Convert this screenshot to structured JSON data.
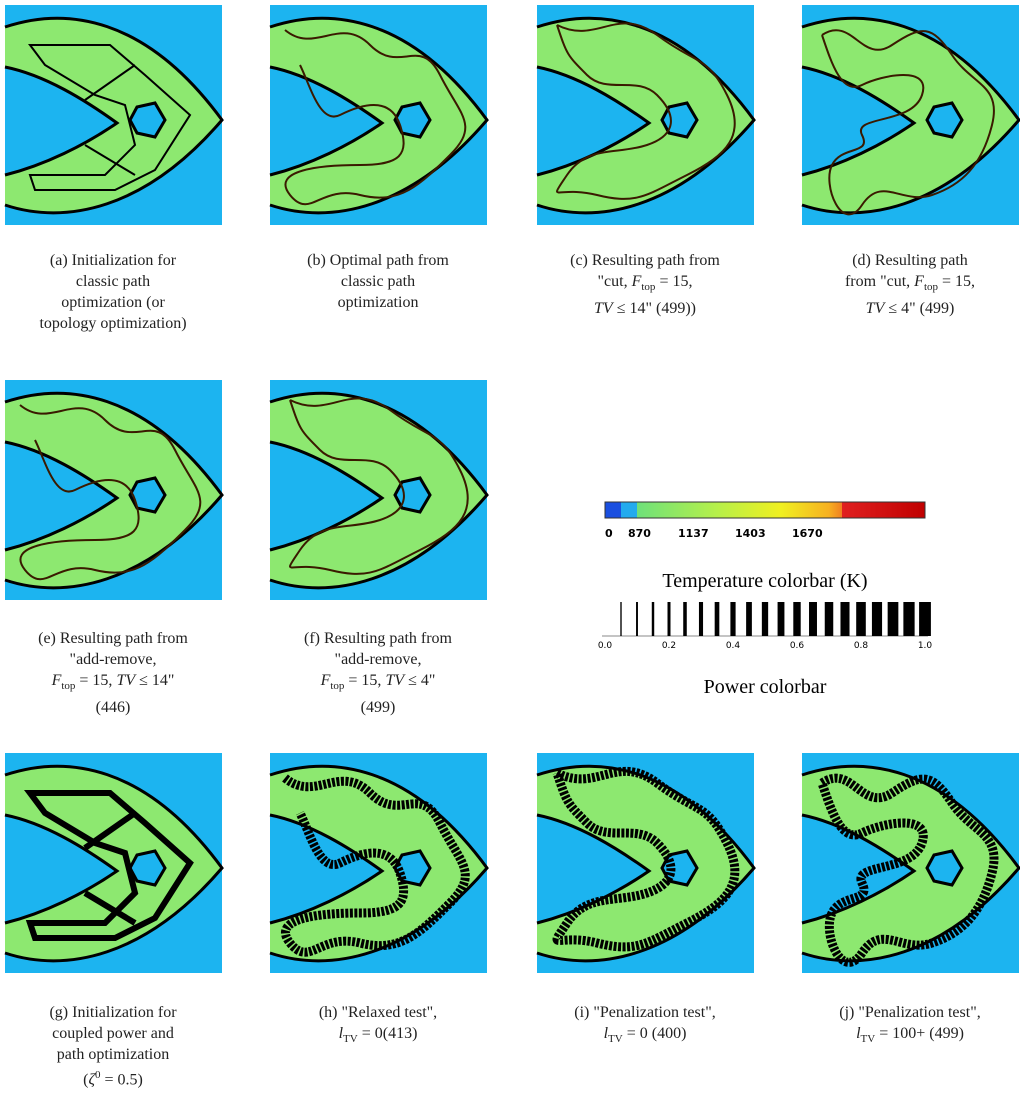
{
  "panels": [
    {
      "caption": [
        "(a) Initialization for",
        "classic path",
        "optimization (or",
        "topology optimization)"
      ]
    },
    {
      "caption": [
        "(b) Optimal path from",
        "classic path",
        "optimization"
      ]
    },
    {
      "caption": [
        "(c) Resulting path from",
        [
          "\"cut, ",
          {
            "i": "F",
            "sub": "top"
          },
          " = 15,"
        ],
        [
          {
            "i": "TV"
          },
          " ≤ 14\" (499))"
        ]
      ]
    },
    {
      "caption": [
        "(d) Resulting path",
        [
          "from \"cut, ",
          {
            "i": "F",
            "sub": "top"
          },
          " = 15,"
        ],
        [
          {
            "i": "TV"
          },
          " ≤ 4\" (499)"
        ]
      ]
    },
    {
      "caption": [
        "(e) Resulting path from",
        "\"add-remove,",
        [
          {
            "i": "F",
            "sub": "top"
          },
          " = 15, ",
          {
            "i": "TV"
          },
          " ≤ 14\""
        ],
        "(446)"
      ]
    },
    {
      "caption": [
        "(f) Resulting path from",
        "\"add-remove,",
        [
          {
            "i": "F",
            "sub": "top"
          },
          " = 15, ",
          {
            "i": "TV"
          },
          " ≤ 4\""
        ],
        "(499)"
      ]
    },
    {
      "caption": [
        "(g) Initialization for",
        "coupled power and",
        "path optimization",
        [
          "(",
          {
            "i": "ζ",
            "sup": "0"
          },
          " = 0.5)"
        ]
      ]
    },
    {
      "caption": [
        "(h) \"Relaxed test\",",
        [
          {
            "i": "l",
            "sub": "TV"
          },
          " = 0(413)"
        ]
      ]
    },
    {
      "caption": [
        "(i) \"Penalization test\",",
        [
          {
            "i": "l",
            "sub": "TV"
          },
          " = 0 (400)"
        ]
      ]
    },
    {
      "caption": [
        "(j) \"Penalization test\",",
        [
          {
            "i": "l",
            "sub": "TV"
          },
          " = 100+ (499)"
        ]
      ]
    }
  ],
  "temperature_colorbar": {
    "ticks": [
      "0",
      "870",
      "1137",
      "1403",
      "1670"
    ],
    "label": "Temperature colorbar (K)"
  },
  "power_colorbar": {
    "ticks": [
      "0.0",
      "0.2",
      "0.4",
      "0.6",
      "0.8",
      "1.0"
    ],
    "label": "Power colorbar"
  }
}
